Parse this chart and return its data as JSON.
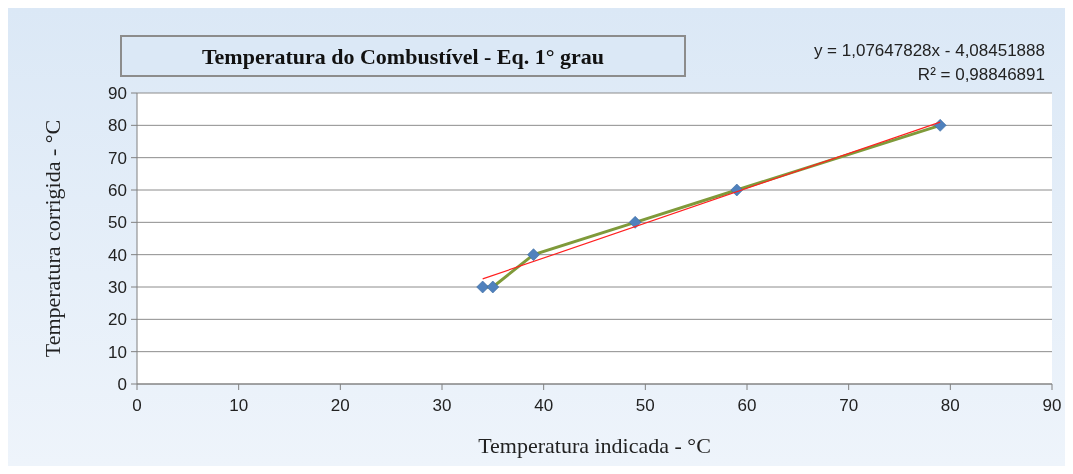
{
  "chart_data": {
    "type": "line",
    "title": "Temperatura do Combustível - Eq. 1° grau",
    "xlabel": "Temperatura indicada - °C",
    "ylabel": "Temperatura corrigida - °C",
    "annotations": [
      "y = 1,07647828x - 4,08451888",
      "R² = 0,98846891"
    ],
    "xlim": [
      0,
      90
    ],
    "xticks": [
      0,
      10,
      20,
      30,
      40,
      50,
      60,
      70,
      80,
      90
    ],
    "ylim": [
      0,
      90
    ],
    "yticks": [
      0,
      10,
      20,
      30,
      40,
      50,
      60,
      70,
      80,
      90
    ],
    "grid": "y",
    "series": [
      {
        "marker": "diamond",
        "color": "#7f9a3a",
        "colors": [
          "#4f81bd",
          "#4f81bd",
          "#4f81bd",
          "#4f81bd",
          "#4f81bd",
          "#4f81bd"
        ],
        "x": [
          34,
          35,
          39,
          49,
          59,
          79
        ],
        "values": [
          30,
          30,
          40,
          50,
          60,
          80
        ]
      },
      {
        "marker": "none",
        "color": "#ff2020",
        "x": [
          34,
          79
        ],
        "values": [
          32.5,
          81
        ]
      }
    ]
  }
}
